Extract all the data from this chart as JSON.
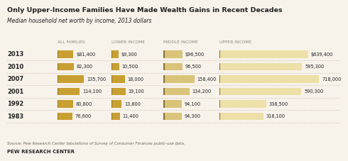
{
  "title": "Only Upper-Income Families Have Made Wealth Gains in Recent Decades",
  "subtitle": "Median household net worth by income, 2013 dollars",
  "years": [
    "2013",
    "2010",
    "2007",
    "2001",
    "1992",
    "1983"
  ],
  "col_headers": [
    "ALL FAMILIES",
    "LOWER INCOME",
    "MIDDLE INCOME",
    "UPPER INCOME"
  ],
  "all_families": [
    81400,
    82300,
    135700,
    114100,
    80800,
    76600
  ],
  "lower_income": [
    9300,
    10500,
    18000,
    19100,
    13800,
    11400
  ],
  "middle_income": [
    96500,
    96500,
    158400,
    134200,
    94100,
    94300
  ],
  "upper_income": [
    639400,
    595300,
    718000,
    590300,
    338500,
    318100
  ],
  "all_labels": [
    "$81,400",
    "82,300",
    "135,700",
    "114,100",
    "80,800",
    "76,600"
  ],
  "lower_labels": [
    "$9,300",
    "10,500",
    "18,000",
    "19,100",
    "13,800",
    "11,400"
  ],
  "middle_labels": [
    "$96,500",
    "96,500",
    "158,400",
    "134,200",
    "94,100",
    "94,300"
  ],
  "upper_labels": [
    "$639,400",
    "595,300",
    "718,000",
    "590,300",
    "338,500",
    "318,100"
  ],
  "color_all": "#C8A032",
  "color_lower": "#C8A032",
  "color_middle": "#D9C47A",
  "color_upper": "#EDE0A8",
  "bg_color": "#F7F2EA",
  "text_color": "#222222",
  "header_color": "#888880",
  "source_text": "Source: Pew Research Center tabulations of Survey of Consumer Finances public-use data.",
  "footer_text": "PEW RESEARCH CENTER",
  "max_all": 200000,
  "max_lower": 25000,
  "max_middle": 200000,
  "max_upper": 750000
}
